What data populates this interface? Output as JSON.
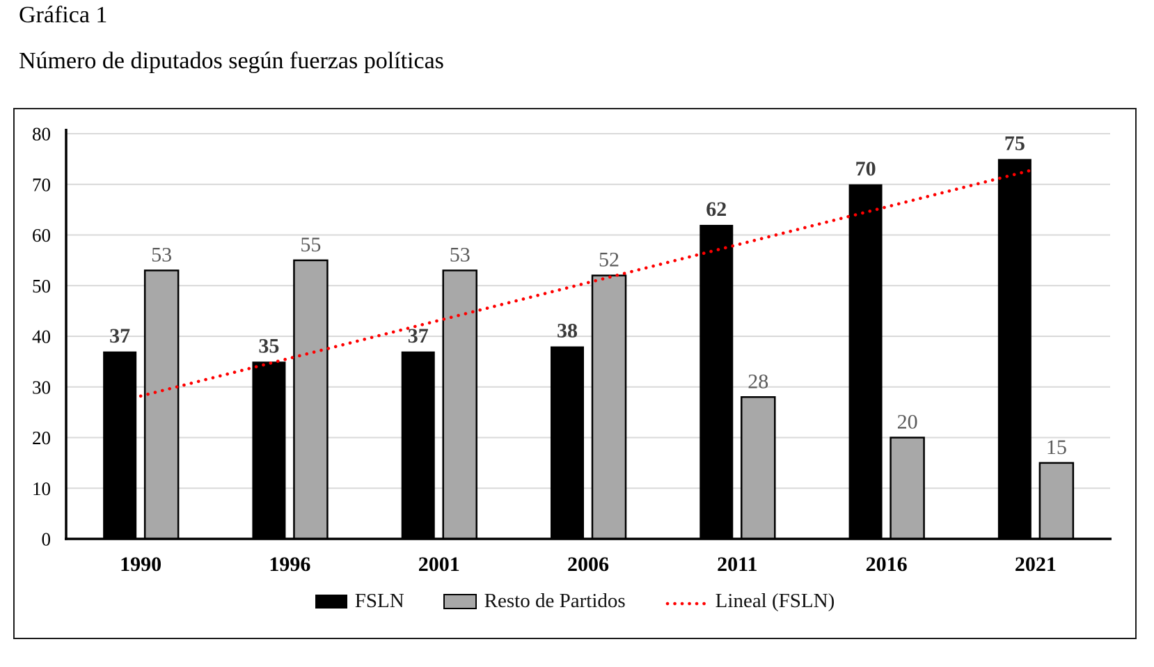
{
  "figure": {
    "label": "Gráfica 1",
    "title": "Número de diputados según fuerzas políticas"
  },
  "chart_data": {
    "type": "bar",
    "title": "Número de diputados según fuerzas políticas",
    "categories": [
      "1990",
      "1996",
      "2001",
      "2006",
      "2011",
      "2016",
      "2021"
    ],
    "series": [
      {
        "name": "FSLN",
        "color": "#000000",
        "label_color": "#3a3a3a",
        "label_style": "bold",
        "values": [
          37,
          35,
          37,
          38,
          62,
          70,
          75
        ]
      },
      {
        "name": "Resto de Partidos",
        "color": "#a8a8a8",
        "border_color": "#000000",
        "label_color": "#595959",
        "label_style": "normal",
        "values": [
          53,
          55,
          53,
          52,
          28,
          20,
          15
        ]
      }
    ],
    "trendline": {
      "name": "Lineal (FSLN)",
      "based_on": "FSLN",
      "color": "#fe0000",
      "style": "dotted",
      "start_value": 28.2,
      "end_value": 73
    },
    "xlabel": "",
    "ylabel": "",
    "ylim": [
      0,
      80
    ],
    "yticks": [
      0,
      10,
      20,
      30,
      40,
      50,
      60,
      70,
      80
    ],
    "grid": true,
    "gridline_color": "#d9d9d9",
    "axis_color": "#000000",
    "legend_position": "bottom",
    "bar_data_labels": true
  }
}
